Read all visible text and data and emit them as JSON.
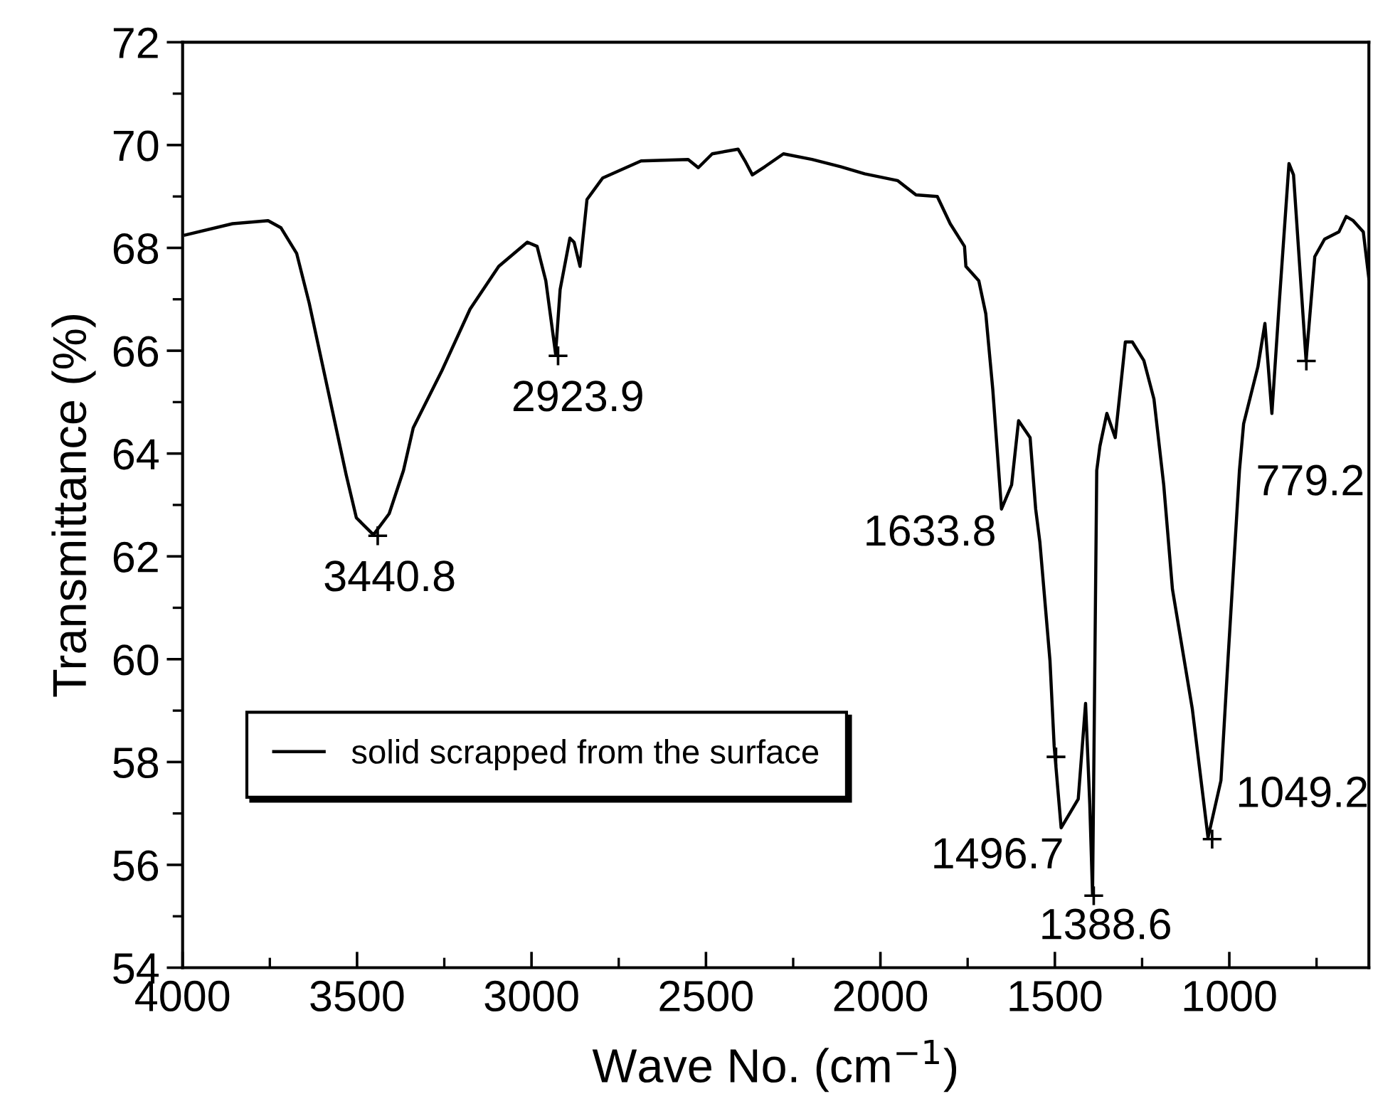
{
  "chart_data": {
    "type": "line",
    "xlabel": "Wave No. (cm$^{−1}$)",
    "ylabel": "Transmittance (%)",
    "xlim": [
      4000,
      600
    ],
    "xticks": [
      4000,
      3500,
      3000,
      2500,
      2000,
      1500,
      1000
    ],
    "ylim": [
      54,
      72
    ],
    "yticks": [
      54,
      56,
      58,
      60,
      62,
      64,
      66,
      68,
      70,
      72
    ],
    "grid": false,
    "legend": "bottom left",
    "marker": "none",
    "line_style": "solid",
    "series": [
      {
        "name": "solid scrapped from the surface",
        "color": "#000000",
        "x": [
          3992,
          3857,
          3755,
          3718,
          3673,
          3637,
          3584,
          3531,
          3502,
          3453,
          3408,
          3367,
          3339,
          3257,
          3176,
          3094,
          3012,
          2984,
          2959,
          2931,
          2918,
          2890,
          2878,
          2861,
          2841,
          2796,
          2686,
          2551,
          2522,
          2482,
          2408,
          2388,
          2367,
          2331,
          2278,
          2196,
          2114,
          2045,
          1951,
          1898,
          1837,
          1800,
          1759,
          1755,
          1718,
          1698,
          1678,
          1653,
          1624,
          1604,
          1571,
          1555,
          1543,
          1514,
          1502,
          1482,
          1433,
          1412,
          1400,
          1392,
          1384,
          1380,
          1371,
          1351,
          1327,
          1298,
          1278,
          1245,
          1216,
          1188,
          1163,
          1106,
          1061,
          1024,
          1004,
          971,
          959,
          918,
          898,
          878,
          857,
          829,
          816,
          780,
          755,
          727,
          686,
          665,
          645,
          616,
          600
        ],
        "values": [
          68.25,
          68.47,
          68.53,
          68.39,
          67.89,
          66.92,
          65.25,
          63.58,
          62.75,
          62.42,
          62.83,
          63.67,
          64.5,
          65.61,
          66.81,
          67.64,
          68.11,
          68.03,
          67.36,
          65.94,
          67.19,
          68.19,
          68.11,
          67.64,
          68.94,
          69.36,
          69.69,
          69.72,
          69.56,
          69.83,
          69.92,
          69.69,
          69.42,
          69.58,
          69.83,
          69.72,
          69.58,
          69.44,
          69.31,
          69.03,
          69.0,
          68.47,
          68.03,
          67.64,
          67.36,
          66.72,
          65.25,
          62.92,
          63.39,
          64.64,
          64.31,
          62.92,
          62.28,
          59.97,
          58.31,
          56.72,
          57.28,
          59.14,
          57.19,
          55.42,
          60.89,
          63.67,
          64.14,
          64.78,
          64.31,
          66.17,
          66.17,
          65.81,
          65.06,
          63.39,
          61.36,
          59.03,
          56.53,
          57.64,
          59.97,
          63.67,
          64.58,
          65.69,
          66.53,
          64.78,
          66.92,
          69.64,
          69.42,
          65.81,
          67.83,
          68.17,
          68.31,
          68.61,
          68.53,
          68.31,
          67.4
        ]
      },
      {
        "type": "scatter",
        "marker": "cross",
        "color": "#000000",
        "x": [
          3440.8,
          2923.9,
          1496.7,
          1388.6,
          1049.2,
          779.2
        ],
        "values": [
          62.4,
          65.9,
          58.1,
          55.4,
          56.5,
          65.8
        ]
      }
    ],
    "annotations": [
      {
        "text": "3440.8",
        "x": 3440.8,
        "y": 62.4
      },
      {
        "text": "2923.9",
        "x": 2923.9,
        "y": 65.9
      },
      {
        "text": "1633.8",
        "x": 1633.8,
        "y": 62.9
      },
      {
        "text": "1496.7",
        "x": 1496.7,
        "y": 56.7
      },
      {
        "text": "1388.6",
        "x": 1388.6,
        "y": 55.4
      },
      {
        "text": "1049.2",
        "x": 1049.2,
        "y": 56.5
      },
      {
        "text": "779.2",
        "x": 779.2,
        "y": 65.8
      }
    ]
  }
}
